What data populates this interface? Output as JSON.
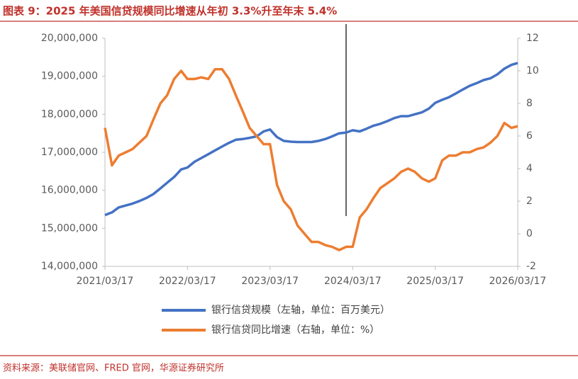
{
  "chart_data": {
    "type": "line",
    "title": "图表 9：2025 年美国信贷规模同比增速从年初 3.3%升至年末 5.4%",
    "source": "资料来源：美联储官网、FRED 官网，华源证券研究所",
    "x": [
      "2021/03/17",
      "2021/04/17",
      "2021/05/17",
      "2021/06/17",
      "2021/07/17",
      "2021/08/17",
      "2021/09/17",
      "2021/10/17",
      "2021/11/17",
      "2021/12/17",
      "2022/01/17",
      "2022/02/17",
      "2022/03/17",
      "2022/04/17",
      "2022/05/17",
      "2022/06/17",
      "2022/07/17",
      "2022/08/17",
      "2022/09/17",
      "2022/10/17",
      "2022/11/17",
      "2022/12/17",
      "2023/01/17",
      "2023/02/17",
      "2023/03/17",
      "2023/04/17",
      "2023/05/17",
      "2023/06/17",
      "2023/07/17",
      "2023/08/17",
      "2023/09/17",
      "2023/10/17",
      "2023/11/17",
      "2023/12/17",
      "2024/01/17",
      "2024/02/17",
      "2024/03/17",
      "2024/04/17",
      "2024/05/17",
      "2024/06/17",
      "2024/07/17",
      "2024/08/17",
      "2024/09/17",
      "2024/10/17",
      "2024/11/17",
      "2024/12/17",
      "2025/01/17",
      "2025/02/17",
      "2025/03/17",
      "2025/04/17",
      "2025/05/17",
      "2025/06/17",
      "2025/07/17",
      "2025/08/17",
      "2025/09/17",
      "2025/10/17",
      "2025/11/17",
      "2025/12/17",
      "2026/01/17",
      "2026/02/17",
      "2026/03/17"
    ],
    "series": [
      {
        "name": "银行信贷规模（左轴，单位：百万美元）",
        "color": "#4472c4",
        "axis": "y",
        "values": [
          15350000,
          15420000,
          15550000,
          15600000,
          15650000,
          15720000,
          15800000,
          15900000,
          16050000,
          16200000,
          16350000,
          16550000,
          16600000,
          16750000,
          16850000,
          16950000,
          17050000,
          17150000,
          17250000,
          17330000,
          17350000,
          17380000,
          17420000,
          17550000,
          17600000,
          17400000,
          17300000,
          17280000,
          17270000,
          17270000,
          17270000,
          17300000,
          17350000,
          17420000,
          17500000,
          17520000,
          17580000,
          17550000,
          17620000,
          17700000,
          17750000,
          17820000,
          17900000,
          17950000,
          17950000,
          18000000,
          18050000,
          18150000,
          18300000,
          18380000,
          18450000,
          18550000,
          18650000,
          18750000,
          18820000,
          18900000,
          18950000,
          19050000,
          19200000,
          19300000,
          19350000
        ]
      },
      {
        "name": "银行信贷同比增速（右轴，单位：%）",
        "color": "#ed7d31",
        "axis": "y2",
        "values": [
          6.5,
          4.2,
          4.8,
          5.0,
          5.2,
          5.6,
          6.0,
          7.0,
          8.0,
          8.5,
          9.5,
          10.0,
          9.5,
          9.5,
          9.6,
          9.5,
          10.1,
          10.1,
          9.5,
          8.5,
          7.5,
          6.5,
          6.0,
          5.5,
          5.5,
          3.0,
          2.0,
          1.5,
          0.5,
          0.0,
          -0.5,
          -0.5,
          -0.7,
          -0.8,
          -1.0,
          -0.8,
          -0.8,
          1.0,
          1.5,
          2.2,
          2.8,
          3.1,
          3.4,
          3.8,
          4.0,
          3.8,
          3.4,
          3.2,
          3.4,
          4.5,
          4.8,
          4.8,
          5.0,
          5.0,
          5.2,
          5.3,
          5.6,
          6.0,
          6.8,
          6.5,
          6.6
        ]
      }
    ],
    "xlim": [
      "2021/03/17",
      "2026/03/17"
    ],
    "xticks": [
      "2021/03/17",
      "2022/03/17",
      "2023/03/17",
      "2024/03/17",
      "2025/03/17",
      "2026/03/17"
    ],
    "ylim": [
      14000000,
      20000000
    ],
    "yticks": [
      {
        "value": 14000000,
        "label": "14,000,000"
      },
      {
        "value": 15000000,
        "label": "15,000,000"
      },
      {
        "value": 16000000,
        "label": "16,000,000"
      },
      {
        "value": 17000000,
        "label": "17,000,000"
      },
      {
        "value": 18000000,
        "label": "18,000,000"
      },
      {
        "value": 19000000,
        "label": "19,000,000"
      },
      {
        "value": 20000000,
        "label": "20,000,000"
      }
    ],
    "y2lim": [
      -2,
      12
    ],
    "y2ticks": [
      -2,
      0,
      2,
      4,
      6,
      8,
      10,
      12
    ]
  }
}
